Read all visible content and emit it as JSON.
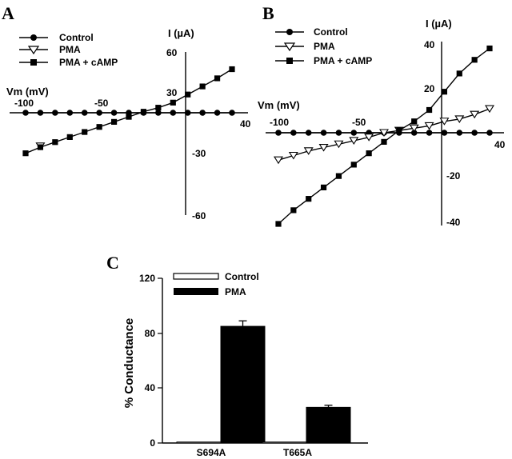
{
  "chart_data": [
    {
      "panel": "A",
      "type": "line",
      "xlabel": "Vm (mV)",
      "ylabel": "I (µA)",
      "xlim": [
        -110,
        40
      ],
      "ylim": [
        -60,
        60
      ],
      "x_ticks": [
        "-100",
        "-50",
        "40"
      ],
      "y_ticks": [
        "60",
        "30",
        "-30",
        "-60"
      ],
      "legend_position": "top-left",
      "series": [
        {
          "name": "Control",
          "marker": "circle-filled",
          "x": [
            -110,
            -100,
            -90,
            -80,
            -70,
            -60,
            -50,
            -40,
            -30,
            -20,
            -10,
            0,
            10,
            20,
            30
          ],
          "y": [
            0,
            0,
            0,
            0,
            0,
            0,
            0,
            0,
            0,
            0,
            0,
            0,
            0,
            0,
            0
          ]
        },
        {
          "name": "PMA",
          "marker": "triangle-open",
          "x": [
            -100
          ],
          "y": [
            -33
          ]
        },
        {
          "name": "PMA + cAMP",
          "marker": "square-filled",
          "x": [
            -110,
            -100,
            -90,
            -80,
            -70,
            -60,
            -50,
            -40,
            -30,
            -20,
            -10,
            0,
            10,
            20,
            30
          ],
          "y": [
            -40,
            -34,
            -29,
            -24,
            -19,
            -14,
            -9,
            -4,
            1,
            5,
            10,
            18,
            26,
            34,
            43
          ]
        }
      ]
    },
    {
      "panel": "B",
      "type": "line",
      "xlabel": "Vm (mV)",
      "ylabel": "I (µA)",
      "xlim": [
        -110,
        40
      ],
      "ylim": [
        -40,
        40
      ],
      "x_ticks": [
        "-100",
        "-50",
        "40"
      ],
      "y_ticks": [
        "40",
        "20",
        "-20",
        "-40"
      ],
      "legend_position": "top-left",
      "series": [
        {
          "name": "Control",
          "marker": "circle-filled",
          "x": [
            -110,
            -100,
            -90,
            -80,
            -70,
            -60,
            -50,
            -40,
            -30,
            -20,
            -10,
            0,
            10,
            20,
            30
          ],
          "y": [
            0,
            0,
            0,
            0,
            0,
            0,
            0,
            0,
            0,
            0,
            0,
            0,
            0,
            0,
            0
          ]
        },
        {
          "name": "PMA",
          "marker": "triangle-open",
          "x": [
            -110,
            -100,
            -90,
            -80,
            -70,
            -60,
            -50,
            -40,
            -30,
            -20,
            -10,
            0,
            10,
            20,
            30
          ],
          "y": [
            -12,
            -10,
            -8,
            -6.5,
            -5,
            -3.5,
            -2,
            0,
            1,
            2,
            3,
            5,
            6,
            8,
            10.5
          ]
        },
        {
          "name": "PMA + cAMP",
          "marker": "square-filled",
          "x": [
            -110,
            -100,
            -90,
            -80,
            -70,
            -60,
            -50,
            -40,
            -30,
            -20,
            -10,
            0,
            10,
            20,
            30
          ],
          "y": [
            -40,
            -34,
            -29,
            -24,
            -19,
            -14,
            -9,
            -4,
            1,
            5,
            10,
            18,
            26,
            32,
            37
          ]
        }
      ]
    },
    {
      "panel": "C",
      "type": "bar",
      "ylabel": "% Conductance",
      "ylim": [
        0,
        120
      ],
      "y_ticks": [
        "0",
        "40",
        "80",
        "120"
      ],
      "categories": [
        "S694A",
        "T665A"
      ],
      "legend_position": "top-left",
      "series": [
        {
          "name": "Control",
          "values": [
            0,
            0
          ],
          "color": "#ffffff"
        },
        {
          "name": "PMA",
          "values": [
            85,
            26
          ],
          "errors": [
            4,
            1.5
          ],
          "color": "#000000"
        }
      ]
    }
  ]
}
